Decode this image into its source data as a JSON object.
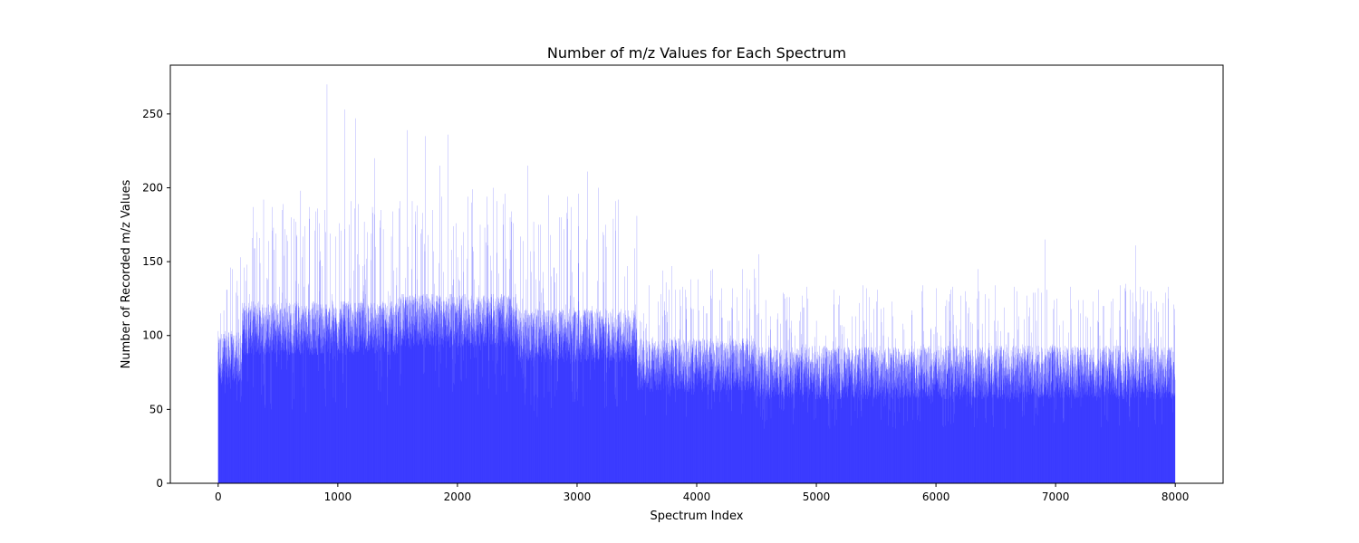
{
  "chart_data": {
    "type": "bar",
    "title": "Number of m/z Values for Each Spectrum",
    "xlabel": "Spectrum Index",
    "ylabel": "Number of Recorded m/z Values",
    "xlim": [
      -400,
      8400
    ],
    "ylim": [
      0,
      283
    ],
    "xticks": [
      0,
      1000,
      2000,
      3000,
      4000,
      5000,
      6000,
      7000,
      8000
    ],
    "yticks": [
      0,
      50,
      100,
      150,
      200,
      250
    ],
    "grid": false,
    "bar_color": "#0000ff",
    "series": [
      {
        "n_points": 8000,
        "x_start": 0,
        "x_step": 1,
        "baseline_by_range": [
          {
            "from": 0,
            "to": 200,
            "typical": 85,
            "low": 50,
            "high": 150
          },
          {
            "from": 200,
            "to": 1500,
            "typical": 105,
            "low": 47,
            "high": 190
          },
          {
            "from": 1500,
            "to": 2500,
            "typical": 110,
            "low": 60,
            "high": 200
          },
          {
            "from": 2500,
            "to": 3500,
            "typical": 100,
            "low": 45,
            "high": 195
          },
          {
            "from": 3500,
            "to": 4500,
            "typical": 80,
            "low": 45,
            "high": 145
          },
          {
            "from": 4500,
            "to": 8000,
            "typical": 75,
            "low": 36,
            "high": 135
          }
        ],
        "peaks": [
          {
            "x": 0,
            "y": 89
          },
          {
            "x": 70,
            "y": 131
          },
          {
            "x": 120,
            "y": 145
          },
          {
            "x": 190,
            "y": 153
          },
          {
            "x": 260,
            "y": 128
          },
          {
            "x": 300,
            "y": 119
          },
          {
            "x": 350,
            "y": 149
          },
          {
            "x": 380,
            "y": 192
          },
          {
            "x": 420,
            "y": 164
          },
          {
            "x": 480,
            "y": 169
          },
          {
            "x": 540,
            "y": 189
          },
          {
            "x": 610,
            "y": 180
          },
          {
            "x": 690,
            "y": 198
          },
          {
            "x": 760,
            "y": 187
          },
          {
            "x": 830,
            "y": 186
          },
          {
            "x": 910,
            "y": 270
          },
          {
            "x": 980,
            "y": 167
          },
          {
            "x": 1060,
            "y": 253
          },
          {
            "x": 1110,
            "y": 191
          },
          {
            "x": 1150,
            "y": 247
          },
          {
            "x": 1250,
            "y": 170
          },
          {
            "x": 1310,
            "y": 220
          },
          {
            "x": 1380,
            "y": 172
          },
          {
            "x": 1460,
            "y": 184
          },
          {
            "x": 1520,
            "y": 191
          },
          {
            "x": 1580,
            "y": 239
          },
          {
            "x": 1650,
            "y": 175
          },
          {
            "x": 1730,
            "y": 235
          },
          {
            "x": 1790,
            "y": 185
          },
          {
            "x": 1850,
            "y": 215
          },
          {
            "x": 1920,
            "y": 236
          },
          {
            "x": 1990,
            "y": 176
          },
          {
            "x": 2050,
            "y": 170
          },
          {
            "x": 2120,
            "y": 190
          },
          {
            "x": 2190,
            "y": 175
          },
          {
            "x": 2250,
            "y": 194
          },
          {
            "x": 2300,
            "y": 200
          },
          {
            "x": 2380,
            "y": 175
          },
          {
            "x": 2440,
            "y": 180
          },
          {
            "x": 2530,
            "y": 167
          },
          {
            "x": 2590,
            "y": 215
          },
          {
            "x": 2680,
            "y": 175
          },
          {
            "x": 2760,
            "y": 195
          },
          {
            "x": 2850,
            "y": 180
          },
          {
            "x": 2950,
            "y": 187
          },
          {
            "x": 3010,
            "y": 196
          },
          {
            "x": 3090,
            "y": 211
          },
          {
            "x": 3180,
            "y": 200
          },
          {
            "x": 3240,
            "y": 175
          },
          {
            "x": 3320,
            "y": 191
          },
          {
            "x": 3400,
            "y": 140
          },
          {
            "x": 3500,
            "y": 181
          },
          {
            "x": 3600,
            "y": 134
          },
          {
            "x": 3700,
            "y": 128
          },
          {
            "x": 3790,
            "y": 147
          },
          {
            "x": 3870,
            "y": 120
          },
          {
            "x": 3970,
            "y": 118
          },
          {
            "x": 4060,
            "y": 120
          },
          {
            "x": 4160,
            "y": 100
          },
          {
            "x": 4260,
            "y": 110
          },
          {
            "x": 4340,
            "y": 126
          },
          {
            "x": 4420,
            "y": 105
          },
          {
            "x": 4480,
            "y": 145
          },
          {
            "x": 4520,
            "y": 155
          },
          {
            "x": 4600,
            "y": 100
          },
          {
            "x": 4680,
            "y": 115
          },
          {
            "x": 4780,
            "y": 105
          },
          {
            "x": 4860,
            "y": 110
          },
          {
            "x": 4920,
            "y": 133
          },
          {
            "x": 5000,
            "y": 110
          },
          {
            "x": 5080,
            "y": 100
          },
          {
            "x": 5160,
            "y": 99
          },
          {
            "x": 5260,
            "y": 98
          },
          {
            "x": 5330,
            "y": 113
          },
          {
            "x": 5400,
            "y": 110
          },
          {
            "x": 5480,
            "y": 118
          },
          {
            "x": 5560,
            "y": 100
          },
          {
            "x": 5640,
            "y": 113
          },
          {
            "x": 5720,
            "y": 108
          },
          {
            "x": 5800,
            "y": 114
          },
          {
            "x": 5880,
            "y": 130
          },
          {
            "x": 5960,
            "y": 105
          },
          {
            "x": 6040,
            "y": 100
          },
          {
            "x": 6120,
            "y": 110
          },
          {
            "x": 6200,
            "y": 104
          },
          {
            "x": 6270,
            "y": 115
          },
          {
            "x": 6350,
            "y": 145
          },
          {
            "x": 6440,
            "y": 125
          },
          {
            "x": 6520,
            "y": 110
          },
          {
            "x": 6600,
            "y": 102
          },
          {
            "x": 6680,
            "y": 130
          },
          {
            "x": 6760,
            "y": 127
          },
          {
            "x": 6840,
            "y": 110
          },
          {
            "x": 6910,
            "y": 165
          },
          {
            "x": 6980,
            "y": 118
          },
          {
            "x": 7060,
            "y": 110
          },
          {
            "x": 7130,
            "y": 118
          },
          {
            "x": 7210,
            "y": 115
          },
          {
            "x": 7290,
            "y": 106
          },
          {
            "x": 7370,
            "y": 100
          },
          {
            "x": 7460,
            "y": 105
          },
          {
            "x": 7540,
            "y": 134
          },
          {
            "x": 7600,
            "y": 104
          },
          {
            "x": 7670,
            "y": 161
          },
          {
            "x": 7760,
            "y": 110
          },
          {
            "x": 7830,
            "y": 118
          },
          {
            "x": 7900,
            "y": 122
          },
          {
            "x": 7990,
            "y": 121
          }
        ]
      }
    ]
  }
}
